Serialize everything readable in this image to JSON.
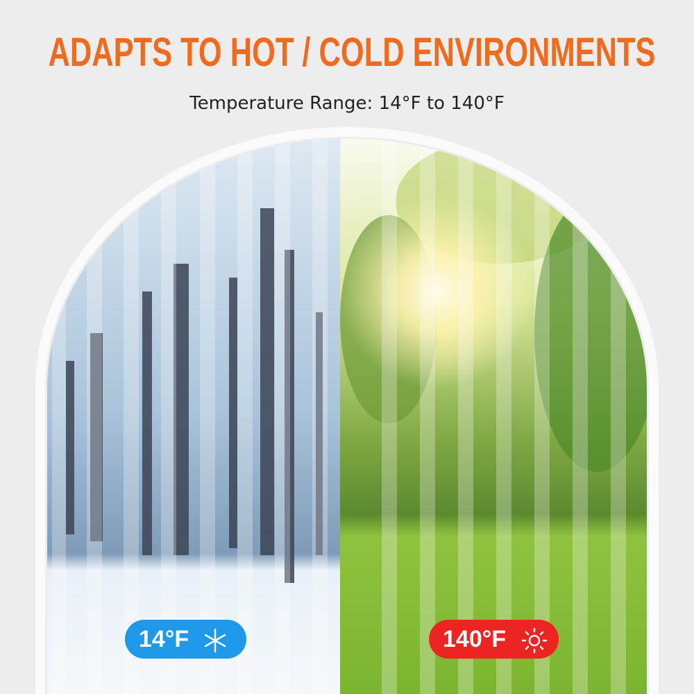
{
  "header": {
    "title": "ADAPTS TO HOT / COLD ENVIRONMENTS",
    "subtitle": "Temperature Range: 14°F to 140°F"
  },
  "badges": [
    {
      "label": "14°F"
    },
    {
      "label": "140°F"
    }
  ]
}
